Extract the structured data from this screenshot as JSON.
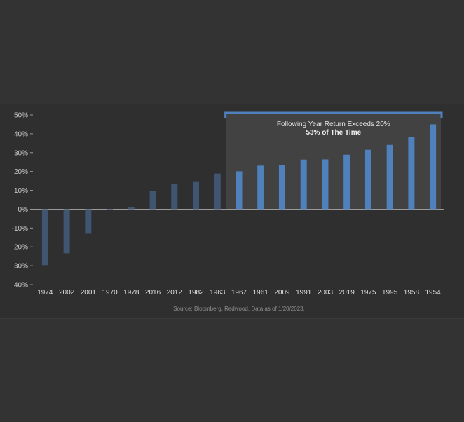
{
  "chart_data": {
    "type": "bar",
    "categories": [
      "1974",
      "2002",
      "2001",
      "1970",
      "1978",
      "2016",
      "2012",
      "1982",
      "1963",
      "1967",
      "1961",
      "2009",
      "1991",
      "2003",
      "2019",
      "1975",
      "1995",
      "1958",
      "1954"
    ],
    "values": [
      -29.7,
      -23.4,
      -13.0,
      0.1,
      1.1,
      9.5,
      13.4,
      14.8,
      18.9,
      20.1,
      23.1,
      23.5,
      26.3,
      26.4,
      28.9,
      31.5,
      34.1,
      38.1,
      45.0
    ],
    "highlight_start_index": 9,
    "ylim": [
      -40,
      50
    ],
    "yticks": [
      -40,
      -30,
      -20,
      -10,
      0,
      10,
      20,
      30,
      40,
      50
    ],
    "ytick_labels": [
      "-40%",
      "-30%",
      "-20%",
      "-10%",
      "0%",
      "10%",
      "20%",
      "30%",
      "40%",
      "50%"
    ],
    "annotation": {
      "line1": "Following Year Return Exceeds 20%",
      "line2": "53% of The Time"
    },
    "source": "Source: Bloomberg, Redwood. Data as of 1/20/2023.",
    "colors": {
      "muted_bar": "#405670",
      "highlight_bar": "#4f81bd",
      "highlight_bg": "#424242",
      "bracket": "#4f81bd",
      "axis": "#9a9a9a"
    }
  }
}
